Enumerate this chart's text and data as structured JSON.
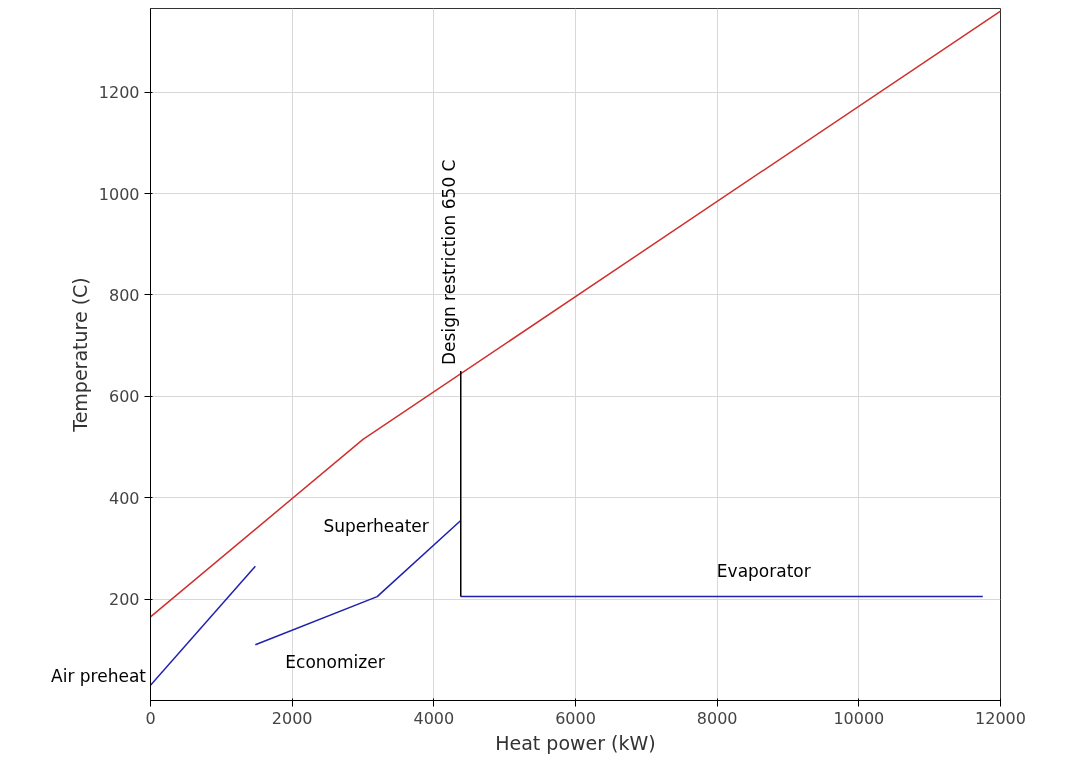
{
  "chart_data": {
    "type": "line",
    "xlabel": "Heat power (kW)",
    "ylabel": "Temperature (C)",
    "xlim": [
      0,
      12000
    ],
    "ylim": [
      0,
      1365
    ],
    "xticks": [
      0,
      2000,
      4000,
      6000,
      8000,
      10000,
      12000
    ],
    "yticks": [
      200,
      400,
      600,
      800,
      1000,
      1200
    ],
    "grid": true,
    "series": [
      {
        "color": "#d03030",
        "x": [
          0,
          3000,
          12000
        ],
        "values": [
          165,
          515,
          1360
        ]
      },
      {
        "name": "Air preheat",
        "color": "#2020b0",
        "x": [
          0,
          1480
        ],
        "values": [
          30,
          265
        ]
      },
      {
        "color": "#2020b0",
        "x": [
          1480,
          3200,
          4380
        ],
        "values": [
          110,
          205,
          355
        ]
      },
      {
        "name": "Evaporator",
        "color": "#2020b0",
        "x": [
          4380,
          11750
        ],
        "values": [
          205,
          205
        ]
      },
      {
        "name": "Design restriction 650 C",
        "color": "#000000",
        "x": [
          4380,
          4380
        ],
        "values": [
          205,
          650
        ]
      }
    ],
    "annotations": [
      {
        "text": "Economizer",
        "x": 1480,
        "y": 110
      },
      {
        "text": "Superheater",
        "x": 4380,
        "y": 355
      }
    ]
  }
}
